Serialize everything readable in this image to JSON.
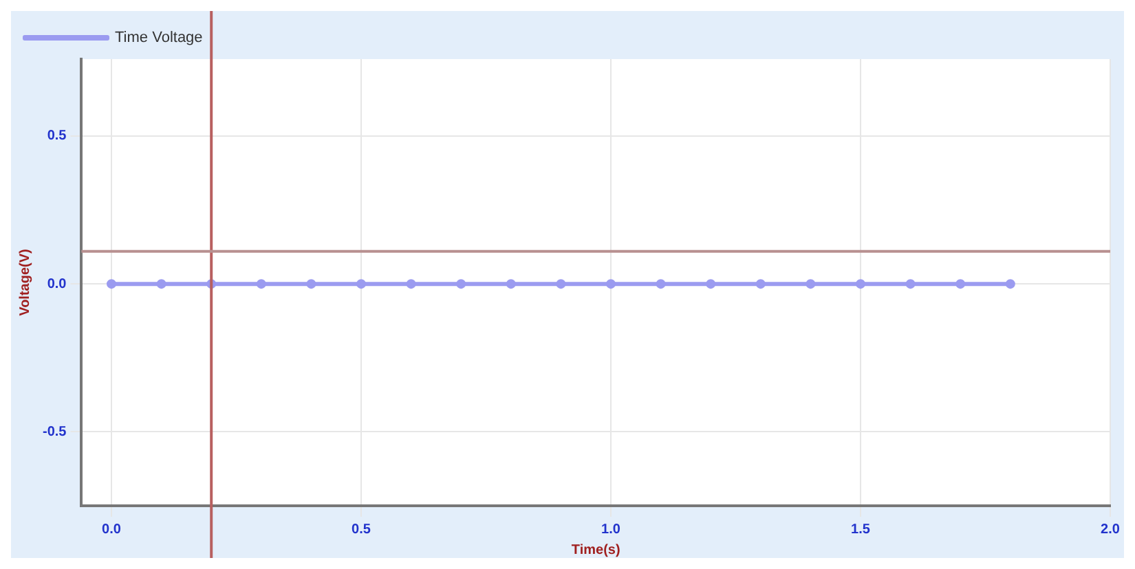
{
  "chart_data": {
    "type": "line",
    "xlabel": "Time(s)",
    "ylabel": "Voltage(V)",
    "x": [
      0,
      0.1,
      0.2,
      0.3,
      0.4,
      0.5,
      0.6,
      0.7,
      0.8,
      0.9,
      1.0,
      1.1,
      1.2,
      1.3,
      1.4,
      1.5,
      1.6,
      1.7,
      1.8
    ],
    "series": [
      {
        "name": "Time Voltage",
        "color": "#9b9bf0",
        "values": [
          0,
          0,
          0,
          0,
          0,
          0,
          0,
          0,
          0,
          0,
          0,
          0,
          0,
          0,
          0,
          0,
          0,
          0,
          0
        ]
      }
    ],
    "xlim": [
      -0.06,
      2.0
    ],
    "xticks": [
      {
        "value": 0,
        "label": "0.0"
      },
      {
        "value": 0.5,
        "label": "0.5"
      },
      {
        "value": 1.0,
        "label": "1.0"
      },
      {
        "value": 1.5,
        "label": "1.5"
      },
      {
        "value": 2.0,
        "label": "2.0"
      }
    ],
    "ylim": [
      -0.75,
      0.76
    ],
    "yticks": [
      {
        "value": -0.5,
        "label": "-0.5"
      },
      {
        "value": 0,
        "label": "0.0"
      },
      {
        "value": 0.5,
        "label": "0.5"
      }
    ],
    "ref_lines": [
      {
        "axis": "x",
        "value": 0.2,
        "color": "#b86060"
      },
      {
        "axis": "y",
        "value": 0.11,
        "color": "#b89090"
      }
    ],
    "grid": true,
    "legend": "top left",
    "marker": "circle",
    "line_style": "solid"
  }
}
